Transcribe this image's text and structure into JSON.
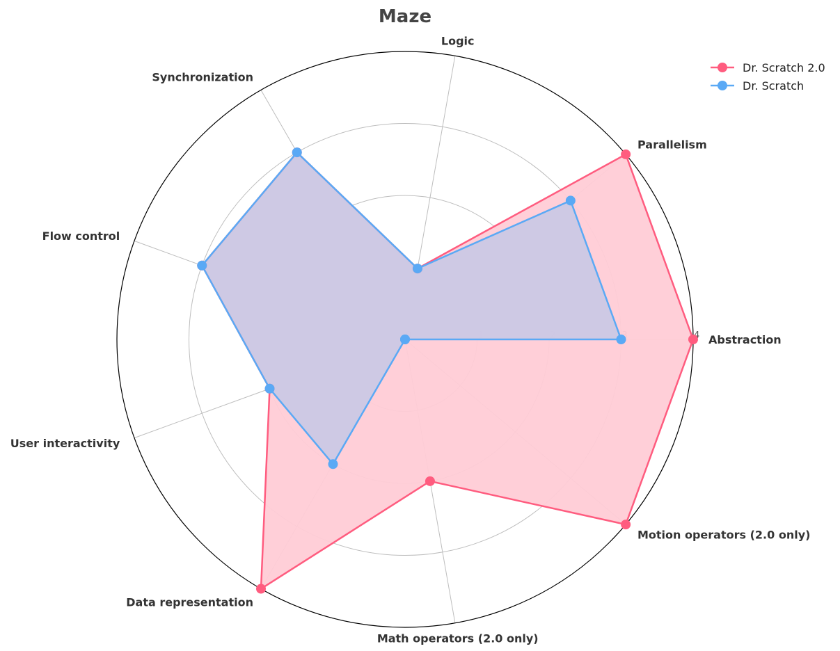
{
  "chart_data": {
    "type": "radar",
    "title": "Maze",
    "axes": [
      "Abstraction",
      "Parallelism",
      "Logic",
      "Synchronization",
      "Flow control",
      "User interactivity",
      "Data representation",
      "Math operators (2.0 only)",
      "Motion operators (2.0 only)"
    ],
    "rlim": [
      0,
      4
    ],
    "rticks": [
      "0",
      "1",
      "2",
      "3",
      "4"
    ],
    "grid": true,
    "legend_position": "top-right",
    "series": [
      {
        "name": "Dr. Scratch 2.0",
        "color": "#ff5c7f",
        "fill": "#ffccd6",
        "values": [
          4,
          4,
          1,
          3,
          3,
          2,
          4,
          2,
          4
        ]
      },
      {
        "name": "Dr. Scratch",
        "color": "#5aa9f5",
        "fill": "#c5c8e6",
        "values": [
          3,
          3,
          1,
          3,
          3,
          2,
          2,
          0,
          0
        ]
      }
    ]
  }
}
